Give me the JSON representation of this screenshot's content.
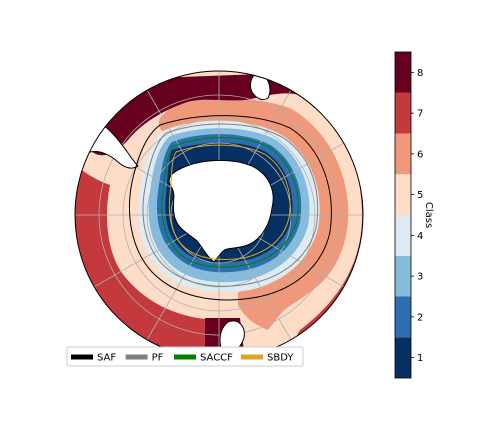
{
  "map": {
    "projection": "south-polar-stereographic",
    "colors": {
      "land": "#ffffff",
      "coast": "#000000",
      "graticule": "#b0b0b0"
    }
  },
  "colorbar": {
    "label": "Class",
    "ticks": [
      "1",
      "2",
      "3",
      "4",
      "5",
      "6",
      "7",
      "8"
    ],
    "colors": [
      "#053061",
      "#2c6fb0",
      "#86bcdb",
      "#deebf2",
      "#fddcc8",
      "#f0987a",
      "#c3393c",
      "#67001f"
    ]
  },
  "legend": {
    "entries": [
      {
        "label": "SAF",
        "color": "#000000"
      },
      {
        "label": "PF",
        "color": "#808080"
      },
      {
        "label": "SACCF",
        "color": "#008000"
      },
      {
        "label": "SBDY",
        "color": "#daa520"
      }
    ]
  }
}
